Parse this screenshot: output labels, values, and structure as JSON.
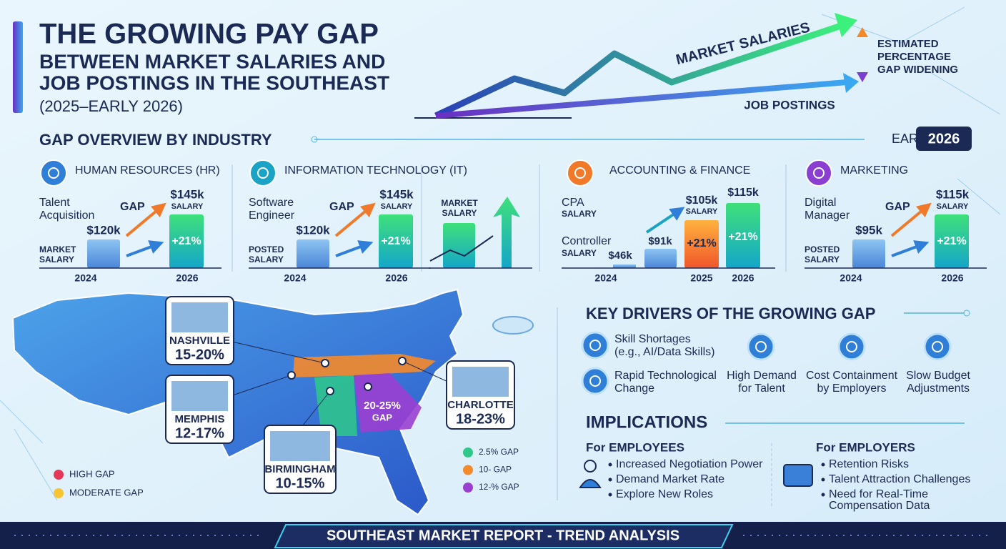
{
  "header": {
    "title": "THE GROWING PAY GAP",
    "subtitle_lines": [
      "BETWEEN MARKET SALARIES AND",
      "JOB POSTINGS IN THE SOUTHEAST"
    ],
    "period": "(2025–EARLY 2026)"
  },
  "trend": {
    "market": "MARKET SALARIES",
    "postings": "JOB POSTINGS",
    "gap_note": [
      "ESTIMATED",
      "PERCENTAGE",
      "GAP WIDENING"
    ]
  },
  "overview": {
    "title": "GAP OVERVIEW BY INDUSTRY",
    "badge_prefix": "EARLY",
    "badge_year": "2026"
  },
  "industries": [
    {
      "name": "HUMAN RESOURCES (HR)",
      "role": [
        "Talent",
        "Acquisition"
      ],
      "gap": "GAP",
      "left_caption": [
        "MARKET",
        "SALARY"
      ],
      "left_value": "$120k",
      "right_value": "$145k",
      "right_caption": "SALARY",
      "change": "+21%",
      "years": [
        "2024",
        "2026"
      ]
    },
    {
      "name": "INFORMATION TECHNOLOGY (IT)",
      "role": [
        "Software",
        "Engineer"
      ],
      "gap": "GAP",
      "left_caption": [
        "POSTED",
        "SALARY"
      ],
      "left_value": "$120k",
      "right_value": "$145k",
      "right_caption": "SALARY",
      "change": "+21%",
      "years": [
        "2024",
        "2026"
      ]
    },
    {
      "name": "MARKETING",
      "role": [
        "Digital",
        "Manager"
      ],
      "gap": "GAP",
      "left_caption": [
        "POSTED",
        "SALARY"
      ],
      "left_value": "$95k",
      "right_value": "$115k",
      "right_caption": "SALARY",
      "change": "+21%",
      "years": [
        "2024",
        "2026"
      ]
    }
  ],
  "mini": {
    "caption": [
      "MARKET",
      "SALARY"
    ]
  },
  "accounting": {
    "name": "ACCOUNTING & FINANCE",
    "role1": "CPA",
    "role1_caption": "SALARY",
    "role2": "Controller",
    "role2_caption": "SALARY",
    "bars": [
      "$46k",
      "$91k",
      "$105k",
      "$115k"
    ],
    "bar3_caption": "SALARY",
    "changes": [
      "+21%",
      "+21%"
    ],
    "years": [
      "2024",
      "2025",
      "2026"
    ]
  },
  "map": {
    "cities": [
      {
        "name": "NASHVILLE",
        "gap": "15-20%"
      },
      {
        "name": "MEMPHIS",
        "gap": "12-17%"
      },
      {
        "name": "BIRMINGHAM",
        "gap": "10-15%"
      },
      {
        "name": "CHARLOTTE",
        "gap": "18-23%"
      }
    ],
    "region": [
      "20-25%",
      "GAP"
    ],
    "legend_left": [
      "HIGH GAP",
      "MODERATE GAP"
    ],
    "legend_right": [
      "2.5% GAP",
      "10- GAP",
      "12-% GAP"
    ]
  },
  "drivers": {
    "title": "KEY DRIVERS OF THE GROWING GAP",
    "items": [
      [
        "Skill Shortages",
        "(e.g., AI/Data Skills)"
      ],
      [
        "Rapid Technological",
        "Change"
      ],
      [
        "High Demand",
        "for Talent"
      ],
      [
        "Cost Containment",
        "by Employers"
      ],
      [
        "Slow Budget",
        "Adjustments"
      ]
    ]
  },
  "implications": {
    "title": "IMPLICATIONS",
    "employees": {
      "title": "For EMPLOYEES",
      "items": [
        "Increased Negotiation Power",
        "Demand Market Rate",
        "Explore New Roles"
      ]
    },
    "employers": {
      "title": "For EMPLOYERS",
      "items": [
        [
          "Retention Risks"
        ],
        [
          "Talent Attraction Challenges"
        ],
        [
          "Need for Real-Time",
          "Compensation Data"
        ]
      ]
    }
  },
  "footer": {
    "text": "SOUTHEAST MARKET REPORT - TREND ANALYSIS"
  }
}
